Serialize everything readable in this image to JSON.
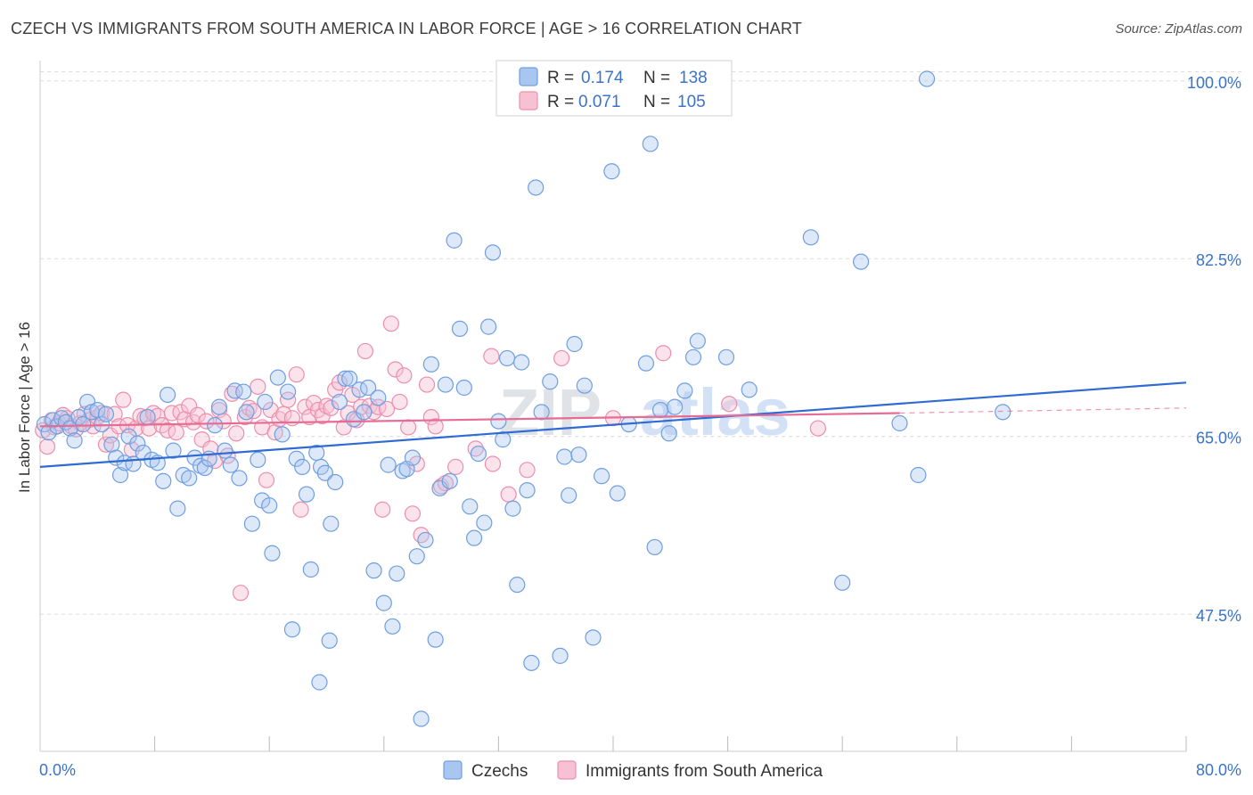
{
  "header": {
    "title": "CZECH VS IMMIGRANTS FROM SOUTH AMERICA IN LABOR FORCE | AGE > 16 CORRELATION CHART",
    "source": "Source: ZipAtlas.com"
  },
  "colors": {
    "czechs": "#6f9fe0",
    "czechs_fill": "#a9c6f0",
    "immigrants": "#ec8fac",
    "immigrants_fill": "#f6c1d2",
    "czechs_line": "#2f6bd2",
    "immigrants_line": "#e86b93",
    "tick_label": "#3b73c9",
    "grid": "#dcdcdc"
  },
  "legend": {
    "czechs": {
      "r_label": "R =",
      "r_value": "0.174",
      "n_label": "N =",
      "n_value": "138"
    },
    "immigrants": {
      "r_label": "R =",
      "r_value": "0.071",
      "n_label": "N =",
      "n_value": "105"
    }
  },
  "watermark": {
    "zip": "ZIP",
    "atlas": "atlas"
  },
  "chart_data": {
    "type": "scatter",
    "title": "CZECH VS IMMIGRANTS FROM SOUTH AMERICA IN LABOR FORCE | AGE > 16 CORRELATION CHART",
    "ylabel": "In Labor Force | Age > 16",
    "xlabel": "",
    "xlim": [
      0,
      80
    ],
    "ylim": [
      34,
      102
    ],
    "x_tick_labels": [
      "0.0%",
      "80.0%"
    ],
    "y_ticks": [
      47.5,
      65.0,
      82.5,
      100.0
    ],
    "y_tick_labels": [
      "47.5%",
      "65.0%",
      "82.5%",
      "100.0%"
    ],
    "grid": "horizontal dashed",
    "legend_bottom": [
      "Czechs",
      "Immigrants from South America"
    ],
    "series": [
      {
        "name": "Czechs",
        "trendline": [
          [
            0,
            62.0
          ],
          [
            80,
            70.3
          ]
        ],
        "points": [
          [
            0.3,
            66.2
          ],
          [
            0.6,
            65.4
          ],
          [
            0.9,
            66.6
          ],
          [
            1.2,
            66.0
          ],
          [
            1.5,
            66.8
          ],
          [
            1.8,
            66.4
          ],
          [
            2.1,
            65.8
          ],
          [
            2.4,
            64.6
          ],
          [
            2.7,
            66.9
          ],
          [
            3.0,
            66.2
          ],
          [
            3.3,
            68.4
          ],
          [
            3.6,
            67.4
          ],
          [
            4.0,
            67.6
          ],
          [
            4.3,
            66.2
          ],
          [
            4.6,
            67.2
          ],
          [
            5.0,
            64.2
          ],
          [
            5.3,
            62.9
          ],
          [
            5.6,
            61.2
          ],
          [
            5.9,
            62.4
          ],
          [
            6.2,
            65.0
          ],
          [
            6.5,
            62.3
          ],
          [
            6.8,
            64.3
          ],
          [
            7.2,
            63.4
          ],
          [
            7.5,
            66.9
          ],
          [
            7.8,
            62.7
          ],
          [
            8.2,
            62.4
          ],
          [
            8.6,
            60.6
          ],
          [
            8.9,
            69.1
          ],
          [
            9.3,
            63.6
          ],
          [
            9.6,
            57.9
          ],
          [
            10.0,
            61.2
          ],
          [
            10.4,
            60.9
          ],
          [
            10.8,
            62.9
          ],
          [
            11.2,
            62.1
          ],
          [
            11.5,
            61.9
          ],
          [
            11.8,
            62.8
          ],
          [
            12.2,
            66.1
          ],
          [
            12.5,
            67.9
          ],
          [
            12.9,
            63.6
          ],
          [
            13.3,
            62.2
          ],
          [
            13.6,
            69.5
          ],
          [
            13.9,
            60.9
          ],
          [
            14.2,
            69.4
          ],
          [
            14.4,
            67.4
          ],
          [
            14.8,
            56.4
          ],
          [
            15.2,
            62.7
          ],
          [
            15.5,
            58.7
          ],
          [
            15.7,
            68.4
          ],
          [
            16.0,
            58.2
          ],
          [
            16.2,
            53.5
          ],
          [
            16.6,
            70.8
          ],
          [
            16.9,
            65.2
          ],
          [
            17.3,
            69.4
          ],
          [
            17.6,
            46.0
          ],
          [
            17.9,
            62.8
          ],
          [
            18.3,
            62.0
          ],
          [
            18.6,
            59.3
          ],
          [
            18.9,
            51.9
          ],
          [
            19.3,
            63.4
          ],
          [
            19.6,
            62.0
          ],
          [
            19.9,
            61.4
          ],
          [
            20.3,
            56.4
          ],
          [
            20.6,
            60.5
          ],
          [
            20.9,
            68.4
          ],
          [
            21.3,
            70.7
          ],
          [
            21.6,
            70.7
          ],
          [
            21.9,
            66.7
          ],
          [
            22.3,
            69.6
          ],
          [
            22.6,
            67.4
          ],
          [
            22.9,
            69.8
          ],
          [
            23.3,
            51.8
          ],
          [
            23.6,
            68.8
          ],
          [
            24.0,
            48.6
          ],
          [
            24.3,
            62.2
          ],
          [
            24.6,
            46.3
          ],
          [
            24.9,
            51.5
          ],
          [
            25.3,
            61.6
          ],
          [
            25.6,
            61.8
          ],
          [
            26.0,
            62.9
          ],
          [
            26.3,
            53.2
          ],
          [
            26.6,
            37.2
          ],
          [
            26.9,
            54.8
          ],
          [
            27.3,
            72.1
          ],
          [
            27.6,
            45.0
          ],
          [
            27.9,
            59.9
          ],
          [
            28.3,
            70.1
          ],
          [
            28.6,
            60.6
          ],
          [
            28.9,
            84.3
          ],
          [
            29.3,
            75.6
          ],
          [
            29.6,
            69.8
          ],
          [
            30.0,
            58.1
          ],
          [
            30.3,
            55.0
          ],
          [
            30.6,
            63.3
          ],
          [
            31.0,
            56.5
          ],
          [
            31.3,
            75.8
          ],
          [
            31.6,
            83.1
          ],
          [
            32.0,
            66.5
          ],
          [
            32.3,
            64.7
          ],
          [
            32.6,
            72.7
          ],
          [
            33.0,
            57.9
          ],
          [
            33.3,
            50.4
          ],
          [
            33.6,
            72.3
          ],
          [
            34.0,
            59.7
          ],
          [
            34.3,
            42.7
          ],
          [
            34.6,
            89.5
          ],
          [
            35.0,
            67.4
          ],
          [
            35.6,
            70.4
          ],
          [
            36.3,
            43.4
          ],
          [
            36.6,
            63.0
          ],
          [
            36.9,
            59.2
          ],
          [
            37.3,
            74.1
          ],
          [
            37.6,
            63.2
          ],
          [
            38.0,
            70.0
          ],
          [
            38.6,
            45.2
          ],
          [
            39.2,
            61.1
          ],
          [
            40.3,
            59.4
          ],
          [
            41.1,
            66.2
          ],
          [
            42.3,
            72.2
          ],
          [
            42.9,
            54.1
          ],
          [
            43.3,
            67.6
          ],
          [
            43.9,
            65.3
          ],
          [
            44.3,
            67.9
          ],
          [
            45.0,
            69.5
          ],
          [
            45.6,
            72.8
          ],
          [
            45.9,
            74.4
          ],
          [
            47.9,
            72.8
          ],
          [
            49.5,
            69.6
          ],
          [
            53.8,
            84.6
          ],
          [
            56.0,
            50.6
          ],
          [
            57.3,
            82.2
          ],
          [
            60.0,
            66.3
          ],
          [
            61.3,
            61.2
          ],
          [
            61.9,
            100.2
          ],
          [
            67.2,
            67.4
          ],
          [
            42.6,
            93.8
          ],
          [
            39.9,
            91.1
          ],
          [
            20.2,
            44.9
          ],
          [
            19.5,
            40.8
          ]
        ]
      },
      {
        "name": "Immigrants from South America",
        "trendline": [
          [
            0,
            66.0
          ],
          [
            60,
            67.3
          ]
        ],
        "trendline_dashed": [
          [
            60,
            67.3
          ],
          [
            80,
            67.8
          ]
        ],
        "points": [
          [
            0.2,
            65.6
          ],
          [
            0.5,
            64.0
          ],
          [
            0.8,
            66.6
          ],
          [
            1.0,
            65.9
          ],
          [
            1.3,
            66.3
          ],
          [
            1.6,
            67.1
          ],
          [
            1.9,
            66.8
          ],
          [
            2.2,
            66.0
          ],
          [
            2.5,
            65.7
          ],
          [
            2.8,
            66.3
          ],
          [
            3.1,
            67.2
          ],
          [
            3.4,
            66.6
          ],
          [
            3.7,
            66.0
          ],
          [
            4.0,
            66.9
          ],
          [
            4.3,
            67.3
          ],
          [
            4.6,
            64.2
          ],
          [
            4.9,
            65.1
          ],
          [
            5.2,
            67.2
          ],
          [
            5.5,
            66.0
          ],
          [
            5.8,
            68.6
          ],
          [
            6.1,
            66.1
          ],
          [
            6.4,
            63.7
          ],
          [
            6.7,
            65.8
          ],
          [
            7.0,
            67.0
          ],
          [
            7.3,
            66.8
          ],
          [
            7.6,
            65.8
          ],
          [
            7.9,
            67.3
          ],
          [
            8.2,
            67.0
          ],
          [
            8.5,
            66.1
          ],
          [
            8.9,
            65.6
          ],
          [
            9.2,
            67.3
          ],
          [
            9.5,
            65.4
          ],
          [
            9.8,
            67.4
          ],
          [
            10.1,
            66.7
          ],
          [
            10.4,
            68.0
          ],
          [
            10.7,
            66.4
          ],
          [
            11.0,
            67.1
          ],
          [
            11.3,
            64.7
          ],
          [
            11.6,
            66.5
          ],
          [
            11.9,
            63.8
          ],
          [
            12.2,
            62.6
          ],
          [
            12.5,
            67.6
          ],
          [
            12.8,
            66.5
          ],
          [
            13.1,
            63.1
          ],
          [
            13.4,
            69.2
          ],
          [
            13.7,
            65.3
          ],
          [
            14.0,
            49.6
          ],
          [
            14.3,
            66.9
          ],
          [
            14.6,
            67.8
          ],
          [
            14.9,
            67.5
          ],
          [
            15.2,
            69.9
          ],
          [
            15.5,
            65.9
          ],
          [
            15.8,
            60.7
          ],
          [
            16.1,
            67.6
          ],
          [
            16.4,
            65.4
          ],
          [
            16.7,
            66.7
          ],
          [
            17.0,
            67.2
          ],
          [
            17.3,
            68.6
          ],
          [
            17.6,
            66.8
          ],
          [
            17.9,
            71.1
          ],
          [
            18.2,
            57.8
          ],
          [
            18.5,
            67.9
          ],
          [
            18.8,
            66.9
          ],
          [
            19.1,
            68.3
          ],
          [
            19.4,
            67.6
          ],
          [
            19.7,
            67.0
          ],
          [
            20.0,
            68.0
          ],
          [
            20.3,
            67.8
          ],
          [
            20.6,
            69.6
          ],
          [
            20.9,
            70.3
          ],
          [
            21.2,
            65.9
          ],
          [
            21.5,
            67.3
          ],
          [
            21.8,
            69.1
          ],
          [
            22.1,
            66.6
          ],
          [
            22.4,
            67.9
          ],
          [
            22.7,
            73.4
          ],
          [
            23.0,
            68.0
          ],
          [
            23.3,
            67.4
          ],
          [
            23.6,
            67.9
          ],
          [
            23.9,
            57.8
          ],
          [
            24.2,
            67.7
          ],
          [
            24.5,
            76.1
          ],
          [
            24.8,
            71.6
          ],
          [
            25.1,
            68.4
          ],
          [
            25.4,
            71.0
          ],
          [
            25.7,
            65.9
          ],
          [
            26.0,
            57.4
          ],
          [
            26.3,
            62.3
          ],
          [
            26.6,
            55.3
          ],
          [
            27.0,
            70.1
          ],
          [
            27.3,
            66.9
          ],
          [
            27.6,
            66.0
          ],
          [
            28.0,
            60.1
          ],
          [
            28.3,
            60.4
          ],
          [
            29.0,
            62.0
          ],
          [
            30.4,
            63.8
          ],
          [
            31.5,
            72.9
          ],
          [
            31.6,
            62.3
          ],
          [
            32.7,
            59.3
          ],
          [
            34.0,
            61.7
          ],
          [
            36.4,
            72.7
          ],
          [
            40.0,
            66.8
          ],
          [
            43.5,
            73.2
          ],
          [
            48.1,
            68.2
          ],
          [
            54.3,
            65.8
          ]
        ]
      }
    ]
  }
}
